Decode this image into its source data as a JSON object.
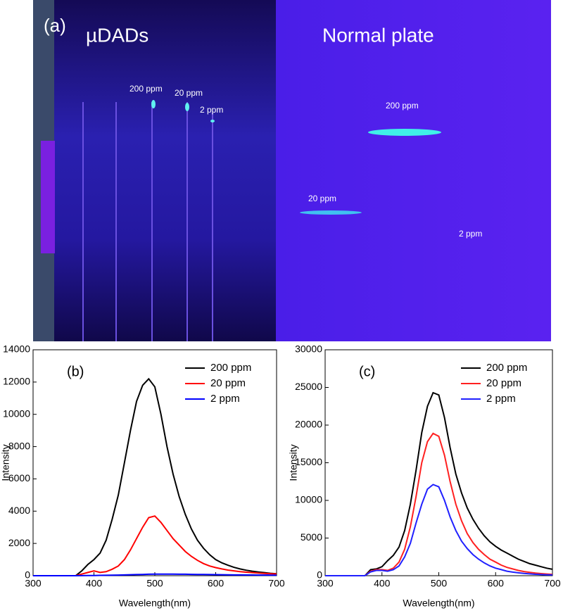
{
  "figure_a": {
    "label": "(a)",
    "left_title": "µDADs",
    "right_title": "Normal plate",
    "left_spots": [
      "200 ppm",
      "20 ppm",
      "2 ppm"
    ],
    "right_spots": [
      "200 ppm",
      "20 ppm",
      "2 ppm"
    ]
  },
  "chart_data": [
    {
      "type": "line",
      "label": "(b)",
      "x_label": "Wavelength(nm)",
      "y_label": "Intensity",
      "xlim": [
        300,
        700
      ],
      "xticks": [
        300,
        400,
        500,
        600,
        700
      ],
      "ylim": [
        0,
        14000
      ],
      "yticks": [
        0,
        2000,
        4000,
        6000,
        8000,
        10000,
        12000,
        14000
      ],
      "x": [
        300,
        310,
        320,
        330,
        340,
        350,
        360,
        370,
        380,
        390,
        400,
        410,
        420,
        430,
        440,
        450,
        460,
        470,
        480,
        490,
        500,
        510,
        520,
        530,
        540,
        550,
        560,
        570,
        580,
        590,
        600,
        610,
        620,
        630,
        640,
        650,
        660,
        670,
        680,
        690,
        700
      ],
      "series": [
        {
          "name": "200 ppm",
          "color": "#000000",
          "values": [
            0,
            0,
            0,
            0,
            0,
            0,
            0,
            0,
            300,
            700,
            1000,
            1400,
            2200,
            3500,
            5000,
            7000,
            9000,
            10800,
            11800,
            12200,
            11700,
            10000,
            8000,
            6300,
            4900,
            3800,
            2900,
            2200,
            1700,
            1300,
            1000,
            800,
            650,
            520,
            420,
            340,
            280,
            230,
            190,
            150,
            120
          ]
        },
        {
          "name": "20 ppm",
          "color": "#ff0000",
          "values": [
            0,
            0,
            0,
            0,
            0,
            0,
            0,
            0,
            100,
            200,
            300,
            200,
            250,
            400,
            600,
            1000,
            1600,
            2300,
            3000,
            3600,
            3700,
            3300,
            2800,
            2300,
            1900,
            1500,
            1200,
            950,
            750,
            600,
            500,
            420,
            350,
            300,
            250,
            220,
            190,
            160,
            140,
            120,
            110
          ]
        },
        {
          "name": "2 ppm",
          "color": "#0000ff",
          "values": [
            0,
            0,
            0,
            0,
            0,
            0,
            0,
            0,
            5,
            10,
            15,
            20,
            25,
            30,
            40,
            50,
            60,
            70,
            80,
            90,
            100,
            100,
            100,
            95,
            90,
            90,
            85,
            80,
            75,
            70,
            65,
            60,
            55,
            50,
            50,
            45,
            45,
            40,
            40,
            35,
            35
          ]
        }
      ]
    },
    {
      "type": "line",
      "label": "(c)",
      "x_label": "Wavelength(nm)",
      "y_label": "Intensity",
      "xlim": [
        300,
        700
      ],
      "xticks": [
        300,
        400,
        500,
        600,
        700
      ],
      "ylim": [
        0,
        30000
      ],
      "yticks": [
        0,
        5000,
        10000,
        15000,
        20000,
        25000,
        30000
      ],
      "x": [
        300,
        310,
        320,
        330,
        340,
        350,
        360,
        370,
        380,
        390,
        400,
        410,
        420,
        430,
        440,
        450,
        460,
        470,
        480,
        490,
        500,
        510,
        520,
        530,
        540,
        550,
        560,
        570,
        580,
        590,
        600,
        610,
        620,
        630,
        640,
        650,
        660,
        670,
        680,
        690,
        700
      ],
      "series": [
        {
          "name": "200 ppm",
          "color": "#000000",
          "values": [
            0,
            0,
            0,
            0,
            0,
            0,
            0,
            0,
            800,
            900,
            1200,
            2000,
            2700,
            3800,
            6000,
            9500,
            14000,
            19000,
            22500,
            24300,
            24000,
            21000,
            17000,
            13500,
            11000,
            9000,
            7500,
            6300,
            5300,
            4500,
            3900,
            3400,
            3000,
            2600,
            2200,
            1900,
            1600,
            1400,
            1200,
            1000,
            850
          ]
        },
        {
          "name": "20 ppm",
          "color": "#ff2020",
          "values": [
            0,
            0,
            0,
            0,
            0,
            0,
            0,
            0,
            600,
            800,
            800,
            700,
            1000,
            1800,
            3500,
            6500,
            10500,
            15000,
            17800,
            18900,
            18500,
            16000,
            12500,
            9500,
            7300,
            5600,
            4400,
            3500,
            2800,
            2200,
            1800,
            1400,
            1100,
            900,
            700,
            550,
            450,
            350,
            280,
            220,
            180
          ]
        },
        {
          "name": "2 ppm",
          "color": "#2020ff",
          "values": [
            0,
            0,
            0,
            0,
            0,
            0,
            0,
            0,
            500,
            700,
            700,
            600,
            800,
            1300,
            2500,
            4300,
            7000,
            9500,
            11500,
            12100,
            11800,
            10000,
            7800,
            6000,
            4600,
            3600,
            2800,
            2200,
            1700,
            1300,
            1000,
            800,
            600,
            480,
            380,
            300,
            240,
            190,
            150,
            120,
            100
          ]
        }
      ]
    }
  ]
}
